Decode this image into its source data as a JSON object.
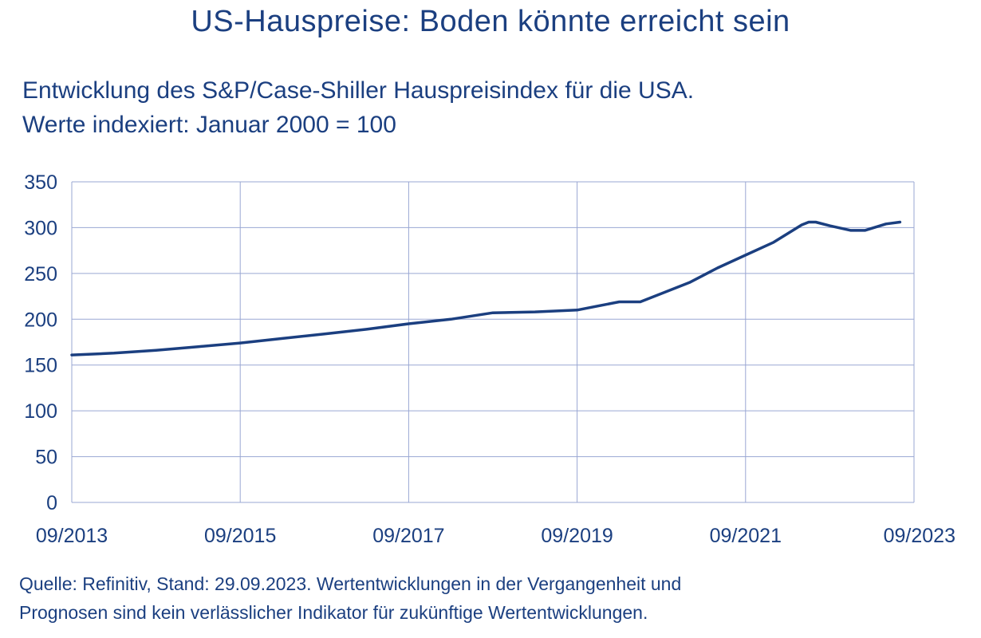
{
  "chart_data": {
    "type": "line",
    "title": "US-Hauspreise: Boden könnte erreicht sein",
    "subtitle": [
      "Entwicklung des S&P/Case-Shiller Hauspreisindex für die USA.",
      "Werte indexiert: Januar 2000 = 100"
    ],
    "xlabel": "",
    "ylabel": "",
    "x_ticks": [
      "09/2013",
      "09/2015",
      "09/2017",
      "09/2019",
      "09/2021",
      "09/2023"
    ],
    "y_ticks": [
      0,
      50,
      100,
      150,
      200,
      250,
      300,
      350
    ],
    "ylim": [
      0,
      350
    ],
    "xlim": [
      "2013-09",
      "2023-09"
    ],
    "grid": true,
    "legend": "none",
    "series": [
      {
        "color": "#1b3f80",
        "points": [
          {
            "x": "2013-09",
            "y": 161
          },
          {
            "x": "2014-03",
            "y": 163
          },
          {
            "x": "2014-09",
            "y": 166
          },
          {
            "x": "2015-03",
            "y": 170
          },
          {
            "x": "2015-09",
            "y": 174
          },
          {
            "x": "2016-03",
            "y": 179
          },
          {
            "x": "2016-09",
            "y": 184
          },
          {
            "x": "2017-03",
            "y": 189
          },
          {
            "x": "2017-09",
            "y": 195
          },
          {
            "x": "2018-03",
            "y": 200
          },
          {
            "x": "2018-09",
            "y": 207
          },
          {
            "x": "2019-03",
            "y": 208
          },
          {
            "x": "2019-09",
            "y": 210
          },
          {
            "x": "2020-03",
            "y": 219
          },
          {
            "x": "2020-06",
            "y": 219
          },
          {
            "x": "2020-09",
            "y": 228
          },
          {
            "x": "2021-01",
            "y": 240
          },
          {
            "x": "2021-05",
            "y": 256
          },
          {
            "x": "2021-09",
            "y": 270
          },
          {
            "x": "2022-01",
            "y": 284
          },
          {
            "x": "2022-05",
            "y": 303
          },
          {
            "x": "2022-06",
            "y": 306
          },
          {
            "x": "2022-07",
            "y": 306
          },
          {
            "x": "2022-09",
            "y": 302
          },
          {
            "x": "2022-12",
            "y": 297
          },
          {
            "x": "2023-02",
            "y": 297
          },
          {
            "x": "2023-05",
            "y": 304
          },
          {
            "x": "2023-07",
            "y": 306
          }
        ]
      }
    ]
  },
  "source": [
    "Quelle: Refinitiv, Stand: 29.09.2023. Wertentwicklungen in der Vergangenheit und",
    "Prognosen sind kein verlässlicher Indikator für zukünftige Wertentwicklungen."
  ]
}
